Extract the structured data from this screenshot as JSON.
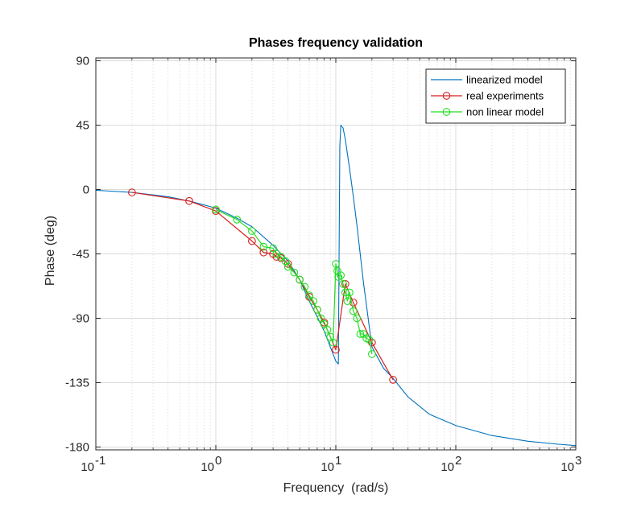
{
  "chart_data": {
    "type": "line",
    "title": "Phases frequency validation",
    "xlabel": "Frequency  (rad/s)",
    "ylabel": "Phase (deg)",
    "xscale": "log",
    "xlim": [
      0.1,
      1000
    ],
    "ylim": [
      -182,
      92
    ],
    "xticks": [
      {
        "value": 0.1,
        "base": "10",
        "exp": "-1"
      },
      {
        "value": 1,
        "base": "10",
        "exp": "0"
      },
      {
        "value": 10,
        "base": "10",
        "exp": "1"
      },
      {
        "value": 100,
        "base": "10",
        "exp": "2"
      },
      {
        "value": 1000,
        "base": "10",
        "exp": "3"
      }
    ],
    "yticks": [
      {
        "value": 90,
        "label": "90"
      },
      {
        "value": 45,
        "label": "45"
      },
      {
        "value": 0,
        "label": "0"
      },
      {
        "value": -45,
        "label": "-45"
      },
      {
        "value": -90,
        "label": "-90"
      },
      {
        "value": -135,
        "label": "-135"
      },
      {
        "value": -180,
        "label": "-180"
      }
    ],
    "grid": true,
    "minor_grid": true,
    "legend_position": "top-right",
    "series": [
      {
        "name": "linearized model",
        "color": "#0072bd",
        "marker": "none",
        "x": [
          0.1,
          0.2,
          0.4,
          0.6,
          1,
          1.5,
          2,
          3,
          4,
          5,
          6,
          7,
          8,
          9,
          10,
          10.5,
          10.8,
          11,
          11.5,
          12,
          13,
          14,
          15,
          17,
          20,
          25,
          30,
          40,
          60,
          100,
          200,
          400,
          700,
          1000
        ],
        "y": [
          -0.5,
          -2,
          -5,
          -8,
          -13,
          -20,
          -26,
          -39,
          -50,
          -63,
          -78,
          -89,
          -99,
          -110,
          -120,
          -122,
          30,
          45,
          43,
          35,
          15,
          -5,
          -25,
          -65,
          -110,
          -125,
          -132,
          -145,
          -157,
          -165,
          -172,
          -176,
          -178,
          -179
        ]
      },
      {
        "name": "real experiments",
        "color": "#d62020",
        "marker": "circle",
        "x": [
          0.2,
          0.6,
          1,
          2,
          2.5,
          3,
          3.2,
          3.5,
          4,
          5,
          6,
          7,
          8,
          10,
          12,
          14,
          20,
          30
        ],
        "y": [
          -2,
          -8,
          -15,
          -36,
          -44,
          -45,
          -47,
          -48,
          -52,
          -63,
          -75,
          -84,
          -93,
          -112,
          -66,
          -79,
          -107,
          -133
        ]
      },
      {
        "name": "non linear model",
        "color": "#22dd22",
        "marker": "circle",
        "x": [
          1,
          1.5,
          2,
          2.5,
          3,
          3.2,
          3.5,
          3.8,
          4,
          4.5,
          5,
          5.5,
          6,
          6.5,
          7,
          7.5,
          8,
          8.5,
          9,
          9.5,
          10,
          10.3,
          10.5,
          11,
          11.5,
          12,
          12.5,
          13,
          14,
          15,
          16,
          17,
          18,
          19,
          20
        ],
        "y": [
          -14,
          -21,
          -29,
          -40,
          -41,
          -45,
          -47,
          -50,
          -54,
          -58,
          -63,
          -68,
          -74,
          -78,
          -84,
          -90,
          -94,
          -98,
          -103,
          -107,
          -52,
          -57,
          -61,
          -60,
          -66,
          -72,
          -78,
          -72,
          -85,
          -90,
          -101,
          -101,
          -104,
          -105,
          -115
        ]
      }
    ]
  }
}
